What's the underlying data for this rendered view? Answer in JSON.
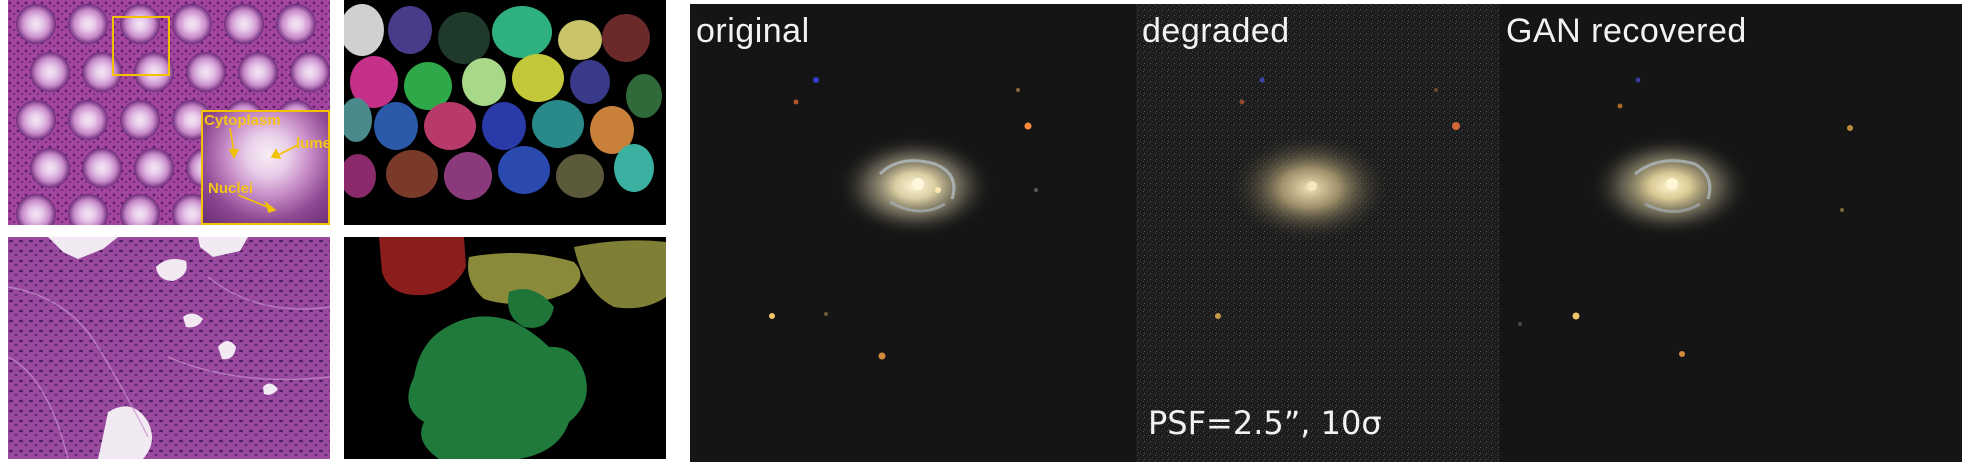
{
  "histology": {
    "annotations": {
      "cytoplasm": "Cytoplasm",
      "lumen": "lumen",
      "nuclei": "Nuclei"
    },
    "highlight_color": "#f2c200"
  },
  "galaxy": {
    "panels": [
      {
        "label": "original"
      },
      {
        "label": "degraded",
        "caption": "PSF=2.5”, 10σ"
      },
      {
        "label": "GAN recovered"
      }
    ],
    "background_color": "#141414"
  }
}
